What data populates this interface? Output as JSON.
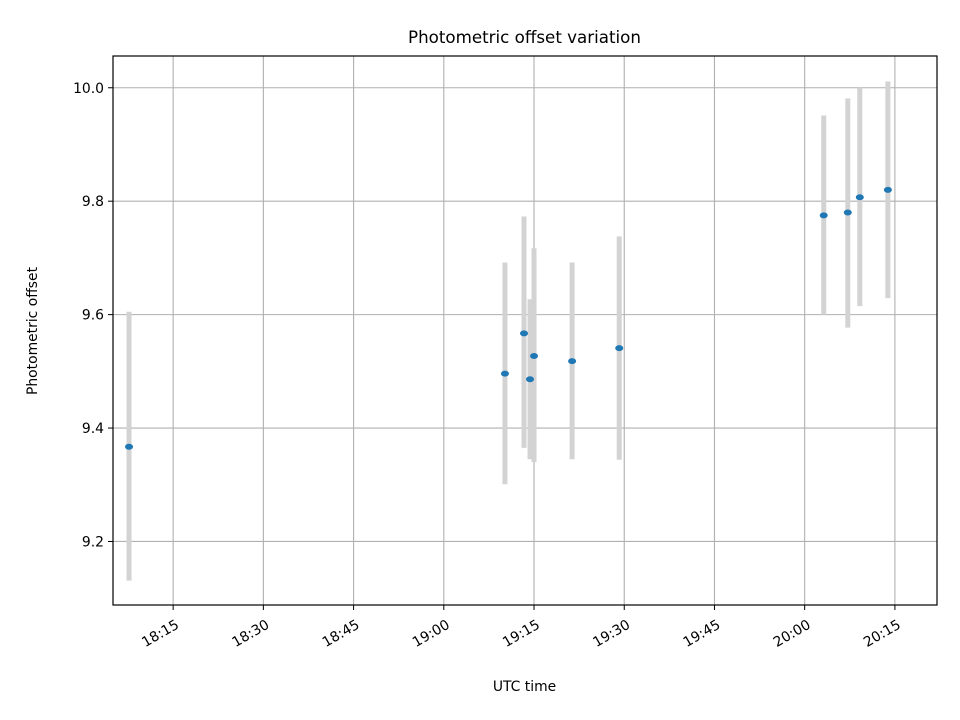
{
  "chart_data": {
    "type": "scatter",
    "title": "Photometric offset variation",
    "xlabel": "UTC time",
    "ylabel": "Photometric offset",
    "x_axis_kind": "time",
    "xlim": [
      "18:05",
      "20:22"
    ],
    "ylim": [
      9.088,
      10.056
    ],
    "grid": true,
    "x_ticks": [
      "18:15",
      "18:30",
      "18:45",
      "19:00",
      "19:15",
      "19:30",
      "19:45",
      "20:00",
      "20:15"
    ],
    "y_ticks": [
      9.2,
      9.4,
      9.6,
      9.8,
      10.0
    ],
    "y_tick_labels": [
      "9.2",
      "9.4",
      "9.6",
      "9.8",
      "10.0"
    ],
    "point_color": "#1f77b4",
    "errorbar_color": "#d3d3d3",
    "points": [
      {
        "x": "18:07:40",
        "y": 9.367,
        "yerr_low": 9.131,
        "yerr_high": 9.605
      },
      {
        "x": "19:10:10",
        "y": 9.496,
        "yerr_low": 9.301,
        "yerr_high": 9.692
      },
      {
        "x": "19:13:20",
        "y": 9.567,
        "yerr_low": 9.365,
        "yerr_high": 9.773
      },
      {
        "x": "19:14:20",
        "y": 9.486,
        "yerr_low": 9.345,
        "yerr_high": 9.627
      },
      {
        "x": "19:15:00",
        "y": 9.527,
        "yerr_low": 9.34,
        "yerr_high": 9.717
      },
      {
        "x": "19:21:20",
        "y": 9.518,
        "yerr_low": 9.345,
        "yerr_high": 9.692
      },
      {
        "x": "19:29:10",
        "y": 9.541,
        "yerr_low": 9.344,
        "yerr_high": 9.738
      },
      {
        "x": "20:03:10",
        "y": 9.775,
        "yerr_low": 9.6,
        "yerr_high": 9.951
      },
      {
        "x": "20:07:10",
        "y": 9.78,
        "yerr_low": 9.577,
        "yerr_high": 9.981
      },
      {
        "x": "20:09:10",
        "y": 9.807,
        "yerr_low": 9.615,
        "yerr_high": 10.0
      },
      {
        "x": "20:13:50",
        "y": 9.82,
        "yerr_low": 9.629,
        "yerr_high": 10.011
      }
    ]
  }
}
